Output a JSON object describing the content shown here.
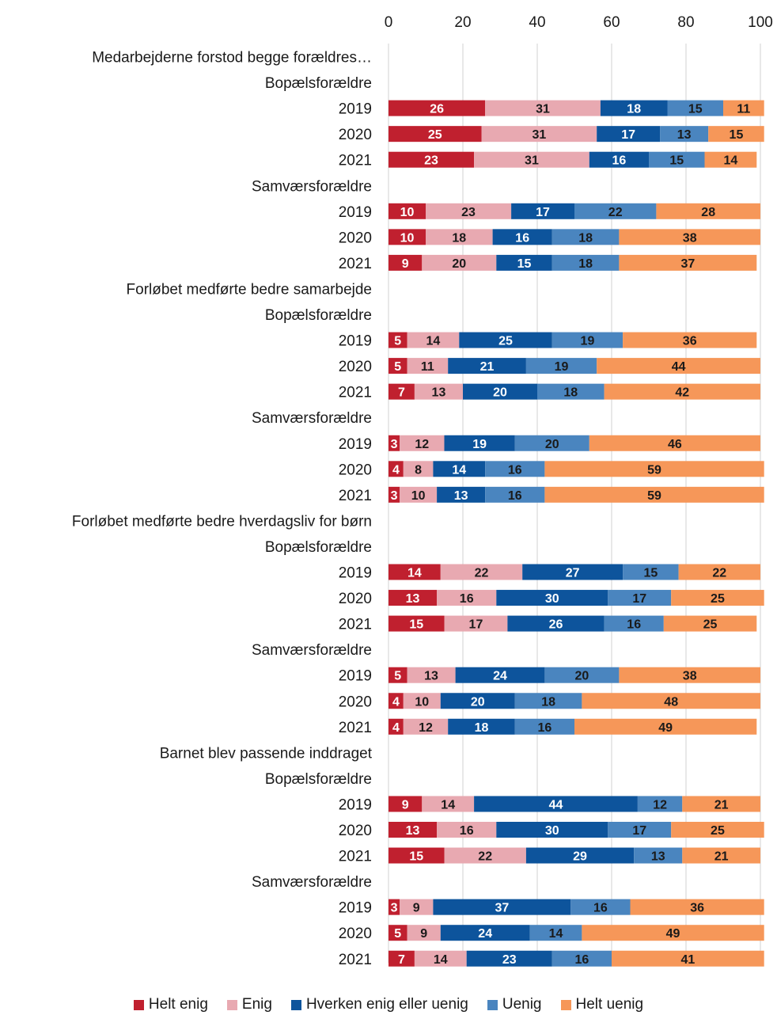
{
  "chart_data": {
    "type": "bar",
    "orientation": "horizontal",
    "stacked": true,
    "xlim": [
      0,
      100
    ],
    "x_ticks": [
      0,
      20,
      40,
      60,
      80,
      100
    ],
    "x_tick_labels": [
      "0",
      "20",
      "40",
      "60",
      "80",
      "100"
    ],
    "grid": true,
    "legend_position": "bottom",
    "series": [
      {
        "name": "Helt enig",
        "color": "#c0202f",
        "label_color": "#ffffff"
      },
      {
        "name": "Enig",
        "color": "#e8a9b1",
        "label_color": "#1a1a1a"
      },
      {
        "name": "Hverken enig eller uenig",
        "color": "#0d549c",
        "label_color": "#ffffff"
      },
      {
        "name": "Uenig",
        "color": "#4a85bf",
        "label_color": "#1a1a1a"
      },
      {
        "name": "Helt uenig",
        "color": "#f69759",
        "label_color": "#1a1a1a"
      }
    ],
    "rows": [
      {
        "kind": "header",
        "label": "Medarbejderne forstod begge forældres…"
      },
      {
        "kind": "subheader",
        "label": "Bopælsforældre"
      },
      {
        "kind": "bar",
        "label": "2019",
        "values": [
          26,
          31,
          18,
          15,
          11
        ]
      },
      {
        "kind": "bar",
        "label": "2020",
        "values": [
          25,
          31,
          17,
          13,
          15
        ]
      },
      {
        "kind": "bar",
        "label": "2021",
        "values": [
          23,
          31,
          16,
          15,
          14
        ]
      },
      {
        "kind": "subheader",
        "label": "Samværsforældre"
      },
      {
        "kind": "bar",
        "label": "2019",
        "values": [
          10,
          23,
          17,
          22,
          28
        ]
      },
      {
        "kind": "bar",
        "label": "2020",
        "values": [
          10,
          18,
          16,
          18,
          38
        ]
      },
      {
        "kind": "bar",
        "label": "2021",
        "values": [
          9,
          20,
          15,
          18,
          37
        ]
      },
      {
        "kind": "header",
        "label": "Forløbet medførte bedre samarbejde"
      },
      {
        "kind": "subheader",
        "label": "Bopælsforældre"
      },
      {
        "kind": "bar",
        "label": "2019",
        "values": [
          5,
          14,
          25,
          19,
          36
        ]
      },
      {
        "kind": "bar",
        "label": "2020",
        "values": [
          5,
          11,
          21,
          19,
          44
        ]
      },
      {
        "kind": "bar",
        "label": "2021",
        "values": [
          7,
          13,
          20,
          18,
          42
        ]
      },
      {
        "kind": "subheader",
        "label": "Samværsforældre"
      },
      {
        "kind": "bar",
        "label": "2019",
        "values": [
          3,
          12,
          19,
          20,
          46
        ]
      },
      {
        "kind": "bar",
        "label": "2020",
        "values": [
          4,
          8,
          14,
          16,
          59
        ]
      },
      {
        "kind": "bar",
        "label": "2021",
        "values": [
          3,
          10,
          13,
          16,
          59
        ]
      },
      {
        "kind": "header",
        "label": "Forløbet medførte bedre hverdagsliv for børn"
      },
      {
        "kind": "subheader",
        "label": "Bopælsforældre"
      },
      {
        "kind": "bar",
        "label": "2019",
        "values": [
          14,
          22,
          27,
          15,
          22
        ]
      },
      {
        "kind": "bar",
        "label": "2020",
        "values": [
          13,
          16,
          30,
          17,
          25
        ]
      },
      {
        "kind": "bar",
        "label": "2021",
        "values": [
          15,
          17,
          26,
          16,
          25
        ]
      },
      {
        "kind": "subheader",
        "label": "Samværsforældre"
      },
      {
        "kind": "bar",
        "label": "2019",
        "values": [
          5,
          13,
          24,
          20,
          38
        ]
      },
      {
        "kind": "bar",
        "label": "2020",
        "values": [
          4,
          10,
          20,
          18,
          48
        ]
      },
      {
        "kind": "bar",
        "label": "2021",
        "values": [
          4,
          12,
          18,
          16,
          49
        ]
      },
      {
        "kind": "header",
        "label": "Barnet blev passende inddraget"
      },
      {
        "kind": "subheader",
        "label": "Bopælsforældre"
      },
      {
        "kind": "bar",
        "label": "2019",
        "values": [
          9,
          14,
          44,
          12,
          21
        ]
      },
      {
        "kind": "bar",
        "label": "2020",
        "values": [
          13,
          16,
          30,
          17,
          25
        ]
      },
      {
        "kind": "bar",
        "label": "2021",
        "values": [
          15,
          22,
          29,
          13,
          21
        ]
      },
      {
        "kind": "subheader",
        "label": "Samværsforældre"
      },
      {
        "kind": "bar",
        "label": "2019",
        "values": [
          3,
          9,
          37,
          16,
          36
        ]
      },
      {
        "kind": "bar",
        "label": "2020",
        "values": [
          5,
          9,
          24,
          14,
          49
        ]
      },
      {
        "kind": "bar",
        "label": "2021",
        "values": [
          7,
          14,
          23,
          16,
          41
        ]
      }
    ]
  }
}
